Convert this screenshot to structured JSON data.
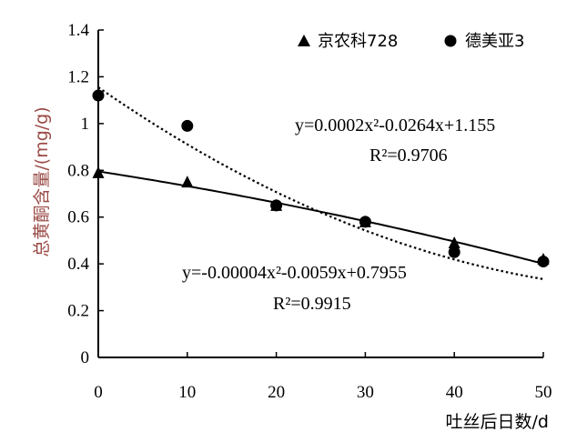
{
  "chart_data": {
    "type": "scatter",
    "xlabel": "吐丝后日数/d",
    "ylabel": "总黄酮含量/(mg/g)",
    "xlim": [
      0,
      50
    ],
    "ylim": [
      0,
      1.4
    ],
    "xticks": [
      "0",
      "10",
      "20",
      "30",
      "40",
      "50"
    ],
    "yticks": [
      "0",
      "0.2",
      "0.4",
      "0.6",
      "0.8",
      "1",
      "1.2",
      "1.4"
    ],
    "grid": false,
    "legend_position": "top-right",
    "series": [
      {
        "name": "京农科728",
        "marker": "triangle",
        "x": [
          0,
          10,
          20,
          30,
          40,
          50
        ],
        "y": [
          0.79,
          0.75,
          0.65,
          0.58,
          0.49,
          0.42
        ],
        "fit": {
          "a": -4e-05,
          "b": -0.0059,
          "c": 0.7955,
          "style": "solid"
        },
        "equation": "y=-0.00004x²-0.0059x+0.7955",
        "r2": "R²=0.9915"
      },
      {
        "name": "德美亚3",
        "marker": "circle",
        "x": [
          0,
          10,
          20,
          30,
          40,
          50
        ],
        "y": [
          1.12,
          0.99,
          0.65,
          0.58,
          0.45,
          0.41
        ],
        "fit": {
          "a": 0.0002,
          "b": -0.0264,
          "c": 1.155,
          "style": "dotted"
        },
        "equation": "y=0.0002x²-0.0264x+1.155",
        "r2": "R²=0.9706"
      }
    ]
  }
}
